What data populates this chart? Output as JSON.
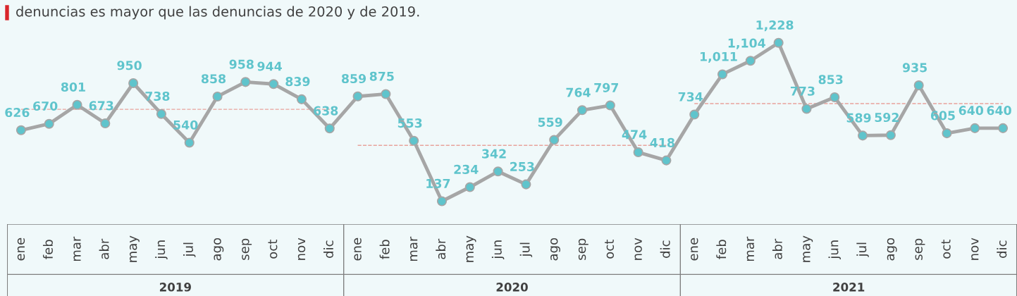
{
  "chart_data": {
    "type": "line",
    "title": "denuncias es mayor que las denuncias de 2020 y de 2019.",
    "categories": [
      "ene",
      "feb",
      "mar",
      "abr",
      "may",
      "jun",
      "jul",
      "ago",
      "sep",
      "oct",
      "nov",
      "dic",
      "ene",
      "feb",
      "mar",
      "abr",
      "may",
      "jun",
      "jul",
      "ago",
      "sep",
      "oct",
      "nov",
      "dic",
      "ene",
      "feb",
      "mar",
      "abr",
      "may",
      "jun",
      "jul",
      "ago",
      "sep",
      "oct",
      "nov",
      "dic"
    ],
    "series": [
      {
        "color": "#e8a39c",
        "line_style": "dashed",
        "marker": "none",
        "values": [
          770,
          770,
          770,
          770,
          770,
          770,
          770,
          770,
          770,
          770,
          770,
          770,
          null,
          null,
          null,
          null,
          null,
          null,
          null,
          null,
          null,
          null,
          null,
          null,
          null,
          null,
          null,
          null,
          null,
          null,
          null,
          null,
          null,
          null,
          null,
          null
        ]
      },
      {
        "color": "#e8a39c",
        "line_style": "dashed",
        "marker": "none",
        "values": [
          null,
          null,
          null,
          null,
          null,
          null,
          null,
          null,
          null,
          null,
          null,
          null,
          522,
          522,
          522,
          522,
          522,
          522,
          522,
          522,
          522,
          522,
          522,
          522,
          null,
          null,
          null,
          null,
          null,
          null,
          null,
          null,
          null,
          null,
          null,
          null
        ]
      },
      {
        "color": "#e8a39c",
        "line_style": "dashed",
        "marker": "none",
        "values": [
          null,
          null,
          null,
          null,
          null,
          null,
          null,
          null,
          null,
          null,
          null,
          null,
          null,
          null,
          null,
          null,
          null,
          null,
          null,
          null,
          null,
          null,
          null,
          null,
          809,
          809,
          809,
          809,
          809,
          809,
          809,
          809,
          809,
          809,
          809,
          809
        ]
      },
      {
        "color": "#a6a6a6",
        "line_style": "solid",
        "marker": "circle",
        "colors": [
          "#5fc4cc",
          "#5fc4cc",
          "#5fc4cc",
          "#5fc4cc",
          "#5fc4cc",
          "#5fc4cc",
          "#5fc4cc",
          "#5fc4cc",
          "#5fc4cc",
          "#5fc4cc",
          "#5fc4cc",
          "#5fc4cc",
          "#5fc4cc",
          "#5fc4cc",
          "#5fc4cc",
          "#5fc4cc",
          "#5fc4cc",
          "#5fc4cc",
          "#5fc4cc",
          "#5fc4cc",
          "#5fc4cc",
          "#5fc4cc",
          "#5fc4cc",
          "#5fc4cc",
          "#5fc4cc",
          "#5fc4cc",
          "#5fc4cc",
          "#5fc4cc",
          "#5fc4cc",
          "#5fc4cc",
          "#5fc4cc",
          "#5fc4cc",
          "#5fc4cc",
          "#5fc4cc",
          "#5fc4cc",
          "#5fc4cc"
        ],
        "values": [
          626,
          670,
          801,
          673,
          950,
          738,
          540,
          858,
          958,
          944,
          839,
          638,
          859,
          875,
          553,
          137,
          234,
          342,
          253,
          559,
          764,
          797,
          474,
          418,
          734,
          1011,
          1104,
          1228,
          773,
          853,
          589,
          592,
          935,
          605,
          640,
          640
        ],
        "value_labels": [
          "626",
          "670",
          "801",
          "673",
          "950",
          "738",
          "540",
          "858",
          "958",
          "944",
          "839",
          "638",
          "859",
          "875",
          "553",
          "137",
          "234",
          "342",
          "253",
          "559",
          "764",
          "797",
          "474",
          "418",
          "734",
          "1,011",
          "1,104",
          "1,228",
          "773",
          "853",
          "589",
          "592",
          "935",
          "605",
          "640",
          "640"
        ]
      }
    ],
    "annotations": [
      "2019",
      "2020",
      "2021"
    ],
    "legend": false
  }
}
